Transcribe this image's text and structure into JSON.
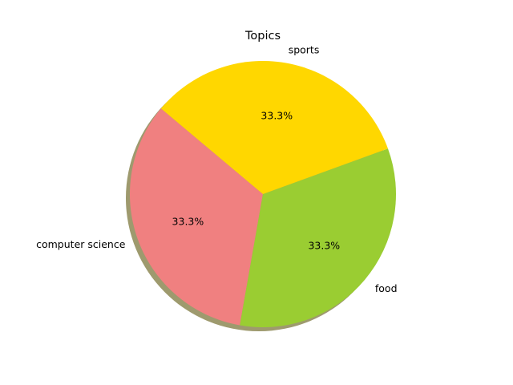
{
  "chart_data": {
    "type": "pie",
    "title": "Topics",
    "labels": [
      "computer science",
      "food",
      "sports"
    ],
    "values": [
      33.3,
      33.3,
      33.3
    ],
    "percent_labels": [
      "33.3%",
      "33.3%",
      "33.3%"
    ],
    "colors": [
      "#f08080",
      "#9acd32",
      "#ffd700"
    ],
    "start_angle_deg": 140,
    "shadow": true,
    "shadow_color": "#9e9a6e"
  }
}
